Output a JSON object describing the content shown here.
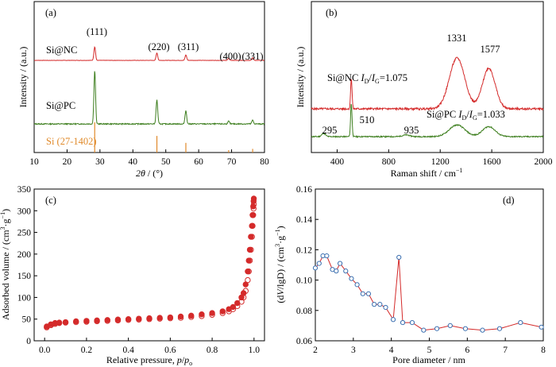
{
  "colors": {
    "red": "#d42a2a",
    "green": "#3e7f1f",
    "orange": "#e08a2b",
    "blue": "#3a6fb0"
  },
  "chart_data": [
    {
      "type": "line",
      "panel": "(a)",
      "xlabel": "2θ / (°)",
      "ylabel": "Intensity / (a.u.)",
      "xlim": [
        10,
        80
      ],
      "xticks": [
        "10",
        "20",
        "30",
        "40",
        "50",
        "60",
        "70",
        "80"
      ],
      "series": [
        {
          "name": "Si@NC",
          "peaks": [
            [
              28.4,
              1.0
            ],
            [
              47.3,
              0.55
            ],
            [
              56.1,
              0.4
            ],
            [
              69.1,
              0.15
            ],
            [
              76.4,
              0.2
            ]
          ]
        },
        {
          "name": "Si@PC",
          "peaks": [
            [
              28.4,
              1.0
            ],
            [
              47.3,
              0.45
            ],
            [
              56.1,
              0.25
            ],
            [
              69.1,
              0.05
            ],
            [
              76.4,
              0.07
            ]
          ]
        }
      ],
      "reference": {
        "name": "Si (27-1402)",
        "lines": [
          [
            28.4,
            1.0
          ],
          [
            47.3,
            0.55
          ],
          [
            56.1,
            0.32
          ],
          [
            69.1,
            0.08
          ],
          [
            76.4,
            0.12
          ]
        ]
      },
      "annotations": [
        "(111)",
        "(220)",
        "(311)",
        "(400)",
        "(331)"
      ]
    },
    {
      "type": "line",
      "panel": "(b)",
      "xlabel": "Raman shift / cm⁻¹",
      "ylabel": "Intensity / (a.u.)",
      "xlim": [
        200,
        2000
      ],
      "xticks": [
        "400",
        "800",
        "1200",
        "1600",
        "2000"
      ],
      "series": [
        {
          "name": "Si@NC",
          "ratio_label": "Si@NC ID/IG=1.075",
          "peaks": [
            [
              510,
              0.6
            ],
            [
              1331,
              1.0
            ],
            [
              1577,
              0.8
            ]
          ]
        },
        {
          "name": "Si@PC",
          "ratio_label": "Si@PC ID/IG=1.033",
          "peaks": [
            [
              295,
              0.1
            ],
            [
              510,
              1.0
            ],
            [
              935,
              0.05
            ],
            [
              1331,
              0.35
            ],
            [
              1577,
              0.3
            ]
          ]
        }
      ],
      "annotations": [
        "1331",
        "1577",
        "295",
        "510",
        "935"
      ]
    },
    {
      "type": "scatter",
      "panel": "(c)",
      "xlabel": "Relative pressure, p/p₀",
      "ylabel": "Adsorbed volume / (cm³g⁻¹)",
      "xlim": [
        -0.05,
        1.05
      ],
      "ylim": [
        0,
        350
      ],
      "xticks": [
        "0.0",
        "0.2",
        "0.4",
        "0.6",
        "0.8",
        "1.0"
      ],
      "yticks": [
        "0",
        "50",
        "100",
        "150",
        "200",
        "250",
        "300",
        "350"
      ],
      "adsorption": [
        [
          0.01,
          33
        ],
        [
          0.03,
          38
        ],
        [
          0.05,
          41
        ],
        [
          0.07,
          42
        ],
        [
          0.1,
          43
        ],
        [
          0.15,
          45
        ],
        [
          0.2,
          46
        ],
        [
          0.25,
          47
        ],
        [
          0.3,
          48
        ],
        [
          0.35,
          49
        ],
        [
          0.4,
          50
        ],
        [
          0.45,
          51
        ],
        [
          0.5,
          52
        ],
        [
          0.55,
          53
        ],
        [
          0.6,
          54
        ],
        [
          0.65,
          56
        ],
        [
          0.7,
          58
        ],
        [
          0.75,
          61
        ],
        [
          0.8,
          64
        ],
        [
          0.85,
          68
        ],
        [
          0.88,
          73
        ],
        [
          0.9,
          78
        ],
        [
          0.92,
          87
        ],
        [
          0.94,
          100
        ],
        [
          0.95,
          110
        ],
        [
          0.96,
          130
        ],
        [
          0.97,
          160
        ],
        [
          0.975,
          185
        ],
        [
          0.98,
          210
        ],
        [
          0.985,
          240
        ],
        [
          0.99,
          265
        ],
        [
          0.993,
          290
        ],
        [
          0.996,
          310
        ],
        [
          0.998,
          322
        ],
        [
          0.999,
          328
        ]
      ],
      "desorption": [
        [
          0.01,
          31
        ],
        [
          0.03,
          36
        ],
        [
          0.05,
          39
        ],
        [
          0.07,
          41
        ],
        [
          0.1,
          42
        ],
        [
          0.15,
          43
        ],
        [
          0.2,
          44
        ],
        [
          0.25,
          45
        ],
        [
          0.3,
          46
        ],
        [
          0.35,
          47
        ],
        [
          0.4,
          48
        ],
        [
          0.45,
          49
        ],
        [
          0.5,
          50
        ],
        [
          0.55,
          51
        ],
        [
          0.6,
          52
        ],
        [
          0.65,
          53
        ],
        [
          0.7,
          55
        ],
        [
          0.75,
          57
        ],
        [
          0.8,
          60
        ],
        [
          0.85,
          64
        ],
        [
          0.88,
          68
        ],
        [
          0.9,
          73
        ],
        [
          0.92,
          80
        ],
        [
          0.94,
          90
        ],
        [
          0.95,
          100
        ],
        [
          0.96,
          115
        ],
        [
          0.97,
          140
        ],
        [
          0.975,
          160
        ],
        [
          0.98,
          185
        ],
        [
          0.985,
          210
        ],
        [
          0.99,
          240
        ],
        [
          0.993,
          265
        ],
        [
          0.996,
          290
        ],
        [
          0.998,
          305
        ],
        [
          0.999,
          315
        ]
      ]
    },
    {
      "type": "line",
      "panel": "(d)",
      "xlabel": "Pore diameter / nm",
      "ylabel": "(dV/lgD) / (cm³g⁻¹)",
      "xlim": [
        2,
        8
      ],
      "ylim": [
        0.06,
        0.16
      ],
      "xticks": [
        "2",
        "3",
        "4",
        "5",
        "6",
        "7",
        "8"
      ],
      "yticks": [
        "0.06",
        "0.08",
        "0.10",
        "0.12",
        "0.14",
        "0.16"
      ],
      "points": [
        [
          2.0,
          0.108
        ],
        [
          2.1,
          0.111
        ],
        [
          2.2,
          0.116
        ],
        [
          2.3,
          0.116
        ],
        [
          2.45,
          0.107
        ],
        [
          2.55,
          0.106
        ],
        [
          2.65,
          0.111
        ],
        [
          2.8,
          0.106
        ],
        [
          2.95,
          0.101
        ],
        [
          3.1,
          0.097
        ],
        [
          3.25,
          0.091
        ],
        [
          3.4,
          0.091
        ],
        [
          3.55,
          0.084
        ],
        [
          3.7,
          0.084
        ],
        [
          3.85,
          0.082
        ],
        [
          4.05,
          0.074
        ],
        [
          4.2,
          0.115
        ],
        [
          4.3,
          0.072
        ],
        [
          4.55,
          0.072
        ],
        [
          4.85,
          0.067
        ],
        [
          5.2,
          0.068
        ],
        [
          5.55,
          0.07
        ],
        [
          5.95,
          0.068
        ],
        [
          6.4,
          0.067
        ],
        [
          6.85,
          0.068
        ],
        [
          7.4,
          0.072
        ],
        [
          7.95,
          0.069
        ]
      ]
    }
  ],
  "labels": {
    "a_panel": "(a)",
    "b_panel": "(b)",
    "c_panel": "(c)",
    "d_panel": "(d)",
    "a_sinc": "Si@NC",
    "a_sipc": "Si@PC",
    "a_ref": "Si (27-1402)",
    "a_111": "(111)",
    "a_220": "(220)",
    "a_311": "(311)",
    "a_400": "(400)",
    "a_331": "(331)",
    "b_1331": "1331",
    "b_1577": "1577",
    "b_295": "295",
    "b_510": "510",
    "b_935": "935"
  }
}
